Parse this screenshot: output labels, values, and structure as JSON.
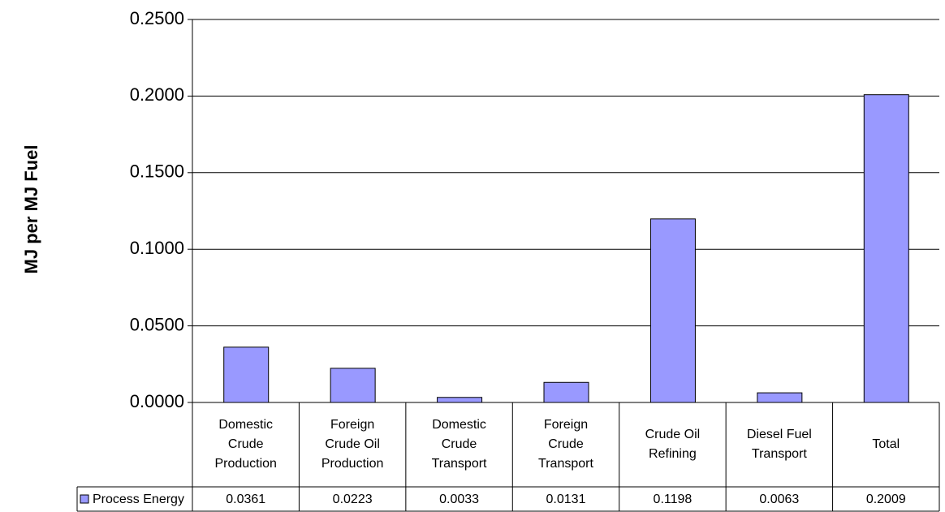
{
  "chart_data": {
    "type": "bar",
    "y_label": "MJ per MJ Fuel",
    "categories": [
      "Domestic Crude Production",
      "Foreign Crude Oil Production",
      "Domestic Crude Transport",
      "Foreign Crude Transport",
      "Crude Oil Refining",
      "Diesel Fuel Transport",
      "Total"
    ],
    "series": [
      {
        "name": "Process Energy",
        "color": "#9999ff",
        "values": [
          0.0361,
          0.0223,
          0.0033,
          0.0131,
          0.1198,
          0.0063,
          0.2009
        ]
      }
    ],
    "ylim": [
      0,
      0.25
    ],
    "yticks": [
      {
        "value": 0,
        "label": "0.0000"
      },
      {
        "value": 0.05,
        "label": "0.0500"
      },
      {
        "value": 0.1,
        "label": "0.1000"
      },
      {
        "value": 0.15,
        "label": "0.1500"
      },
      {
        "value": 0.2,
        "label": "0.2000"
      },
      {
        "value": 0.25,
        "label": "0.2500"
      }
    ],
    "grid": true,
    "data_table": true
  }
}
